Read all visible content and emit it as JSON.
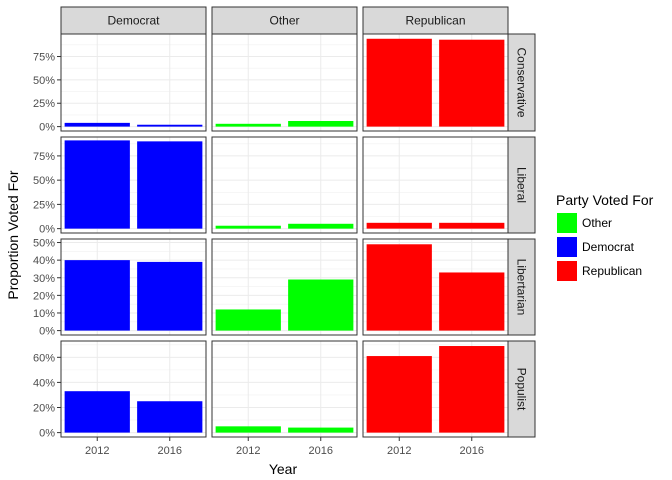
{
  "chart_data": {
    "type": "bar",
    "xlabel": "Year",
    "ylabel": "Proportion Voted For",
    "legend": {
      "title": "Party Voted For",
      "placement": "right",
      "entries": [
        {
          "name": "Other",
          "color": "#00ff00"
        },
        {
          "name": "Democrat",
          "color": "#0000ff"
        },
        {
          "name": "Republican",
          "color": "#ff0000"
        }
      ]
    },
    "columns": [
      "Democrat",
      "Other",
      "Republican"
    ],
    "column_colors": [
      "#0000ff",
      "#00ff00",
      "#ff0000"
    ],
    "rows": [
      "Conservative",
      "Liberal",
      "Libertarian",
      "Populist"
    ],
    "categories": [
      "2012",
      "2016"
    ],
    "grid": true,
    "y_scales": [
      {
        "ticks": [
          0,
          0.25,
          0.5,
          0.75
        ],
        "tick_labels": [
          "0%",
          "25%",
          "50%",
          "75%"
        ],
        "ylim": [
          -0.047,
          0.991
        ]
      },
      {
        "ticks": [
          0,
          0.25,
          0.5,
          0.75
        ],
        "tick_labels": [
          "0%",
          "25%",
          "50%",
          "75%"
        ],
        "ylim": [
          -0.045,
          0.945
        ]
      },
      {
        "ticks": [
          0,
          0.1,
          0.2,
          0.3,
          0.4,
          0.5
        ],
        "tick_labels": [
          "0%",
          "10%",
          "20%",
          "30%",
          "40%",
          "50%"
        ],
        "ylim": [
          -0.025,
          0.52
        ]
      },
      {
        "ticks": [
          0,
          0.2,
          0.4,
          0.6
        ],
        "tick_labels": [
          "0%",
          "20%",
          "40%",
          "60%"
        ],
        "ylim": [
          -0.035,
          0.73
        ]
      }
    ],
    "values": [
      [
        [
          0.04,
          0.02
        ],
        [
          0.03,
          0.06
        ],
        [
          0.94,
          0.93
        ]
      ],
      [
        [
          0.91,
          0.9
        ],
        [
          0.03,
          0.05
        ],
        [
          0.06,
          0.06
        ]
      ],
      [
        [
          0.4,
          0.39
        ],
        [
          0.12,
          0.29
        ],
        [
          0.49,
          0.33
        ]
      ],
      [
        [
          0.33,
          0.25
        ],
        [
          0.05,
          0.04
        ],
        [
          0.61,
          0.69
        ]
      ]
    ]
  }
}
